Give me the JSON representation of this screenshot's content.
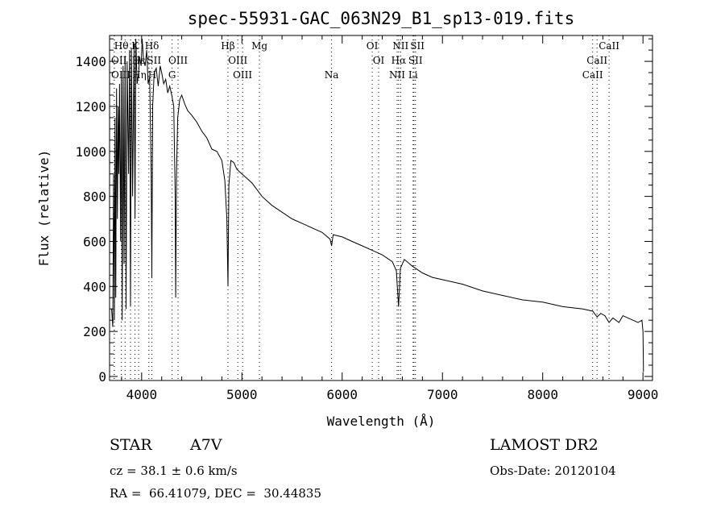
{
  "chart_data": {
    "type": "line",
    "title": "spec-55931-GAC_063N29_B1_sp13-019.fits",
    "xlabel": "Wavelength (Å)",
    "ylabel": "Flux (relative)",
    "xlim": [
      3680,
      9095
    ],
    "ylim": [
      -18,
      1515
    ],
    "xticks": [
      4000,
      5000,
      6000,
      7000,
      8000,
      9000
    ],
    "yticks": [
      0,
      200,
      400,
      600,
      800,
      1000,
      1200,
      1400
    ],
    "grid": false,
    "series": [
      {
        "name": "flux",
        "x": [
          3700,
          3712,
          3720,
          3728,
          3735,
          3742,
          3750,
          3758,
          3766,
          3772,
          3780,
          3790,
          3798,
          3806,
          3815,
          3825,
          3835,
          3845,
          3855,
          3870,
          3880,
          3889,
          3898,
          3910,
          3925,
          3934,
          3942,
          3955,
          3970,
          3980,
          3995,
          4005,
          4020,
          4035,
          4050,
          4065,
          4080,
          4095,
          4102,
          4110,
          4125,
          4145,
          4165,
          4185,
          4200,
          4220,
          4240,
          4260,
          4280,
          4300,
          4320,
          4335,
          4340,
          4348,
          4360,
          4380,
          4400,
          4430,
          4460,
          4500,
          4550,
          4600,
          4650,
          4700,
          4750,
          4800,
          4830,
          4850,
          4861,
          4870,
          4890,
          4920,
          4950,
          5000,
          5050,
          5100,
          5150,
          5200,
          5250,
          5300,
          5400,
          5500,
          5600,
          5700,
          5800,
          5880,
          5894,
          5910,
          6000,
          6100,
          6200,
          6300,
          6400,
          6500,
          6540,
          6563,
          6580,
          6620,
          6700,
          6800,
          6900,
          7000,
          7200,
          7400,
          7600,
          7800,
          8000,
          8200,
          8400,
          8500,
          8542,
          8580,
          8620,
          8662,
          8700,
          8760,
          8800,
          8850,
          8900,
          8950,
          8990,
          9000,
          9005
        ],
        "y": [
          300,
          220,
          900,
          250,
          1150,
          350,
          1280,
          700,
          1200,
          900,
          1300,
          600,
          1350,
          250,
          1380,
          500,
          1420,
          300,
          1400,
          900,
          1450,
          310,
          1460,
          800,
          1480,
          700,
          1500,
          1300,
          1350,
          1420,
          1380,
          1500,
          1400,
          1380,
          1450,
          1300,
          1330,
          900,
          440,
          1200,
          1350,
          1370,
          1290,
          1380,
          1350,
          1300,
          1320,
          1260,
          1290,
          1250,
          1200,
          800,
          350,
          900,
          1150,
          1230,
          1250,
          1210,
          1180,
          1160,
          1130,
          1090,
          1060,
          1010,
          1000,
          960,
          870,
          700,
          400,
          850,
          960,
          950,
          920,
          900,
          880,
          860,
          830,
          800,
          780,
          760,
          730,
          700,
          680,
          660,
          640,
          610,
          580,
          630,
          620,
          600,
          580,
          560,
          540,
          510,
          470,
          310,
          480,
          520,
          490,
          460,
          440,
          430,
          410,
          380,
          360,
          340,
          330,
          310,
          300,
          290,
          265,
          280,
          270,
          240,
          260,
          240,
          270,
          260,
          250,
          240,
          250,
          200,
          20
        ]
      }
    ],
    "lines": [
      {
        "label": "Hθ",
        "wave": 3798,
        "row": 0
      },
      {
        "label": "K",
        "wave": 3934,
        "row": 0
      },
      {
        "label": "Hδ",
        "wave": 4102,
        "row": 0
      },
      {
        "label": "Hβ",
        "wave": 4861,
        "row": 0
      },
      {
        "label": "Mg",
        "wave": 5175,
        "row": 0
      },
      {
        "label": "OI",
        "wave": 6300,
        "row": 0
      },
      {
        "label": "NII",
        "wave": 6583,
        "row": 0
      },
      {
        "label": "SII",
        "wave": 6716,
        "row": 0
      },
      {
        "label": "CaII",
        "wave": 8662,
        "row": 0
      },
      {
        "label": "OII",
        "wave": 3727,
        "row": 1
      },
      {
        "label": "Hε",
        "wave": 3970,
        "row": 1
      },
      {
        "label": "SII",
        "wave": 4072,
        "row": 1
      },
      {
        "label": "OIII",
        "wave": 4363,
        "row": 1
      },
      {
        "label": "OIII",
        "wave": 4959,
        "row": 1
      },
      {
        "label": "OI",
        "wave": 6363,
        "row": 1
      },
      {
        "label": "Hα",
        "wave": 6563,
        "row": 1
      },
      {
        "label": "SII",
        "wave": 6731,
        "row": 1
      },
      {
        "label": "CaII",
        "wave": 8542,
        "row": 1
      },
      {
        "label": "OIII",
        "wave": 3727,
        "row": 2
      },
      {
        "label": "Hη",
        "wave": 3835,
        "row": 2
      },
      {
        "label": "H",
        "wave": 3889,
        "row": 2
      },
      {
        "label": "G",
        "wave": 4304,
        "row": 2
      },
      {
        "label": "OIII",
        "wave": 5007,
        "row": 2
      },
      {
        "label": "Na",
        "wave": 5894,
        "row": 2
      },
      {
        "label": "NII",
        "wave": 6548,
        "row": 2
      },
      {
        "label": "Li",
        "wave": 6707,
        "row": 2
      },
      {
        "label": "CaII",
        "wave": 8498,
        "row": 2
      }
    ]
  },
  "info": {
    "class": "STAR",
    "subclass": "A7V",
    "survey": "LAMOST DR2",
    "cz": "cz = 38.1 ± 0.6 km/s",
    "obs_date": "Obs-Date: 20120104",
    "coords": "RA =  66.41079, DEC =  30.44835"
  }
}
